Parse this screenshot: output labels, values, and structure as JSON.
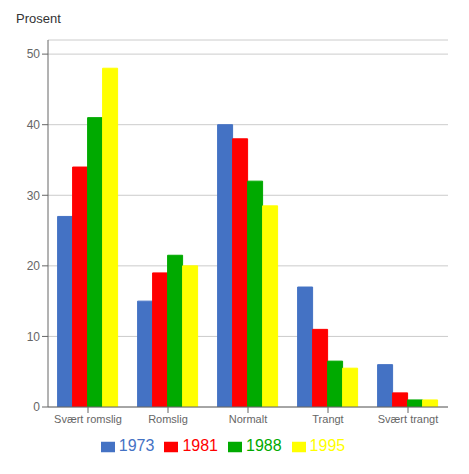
{
  "chart_data": {
    "type": "bar",
    "ylabel": "Prosent",
    "categories": [
      "Svært romslig",
      "Romslig",
      "Normalt",
      "Trangt",
      "Svært trangt"
    ],
    "series": [
      {
        "name": "1973",
        "color": "#4472C4",
        "values": [
          27,
          15,
          40,
          17,
          6
        ]
      },
      {
        "name": "1981",
        "color": "#FF0000",
        "values": [
          34,
          19,
          38,
          11,
          2
        ]
      },
      {
        "name": "1988",
        "color": "#00AA00",
        "values": [
          41,
          21.5,
          32,
          6.5,
          1
        ]
      },
      {
        "name": "1995",
        "color": "#FFFF00",
        "values": [
          48,
          20,
          28.5,
          5.5,
          1
        ]
      }
    ],
    "ylim": [
      0,
      52
    ],
    "yticks": [
      0,
      10,
      20,
      30,
      40,
      50
    ],
    "grid": true,
    "legend": "bottom"
  }
}
